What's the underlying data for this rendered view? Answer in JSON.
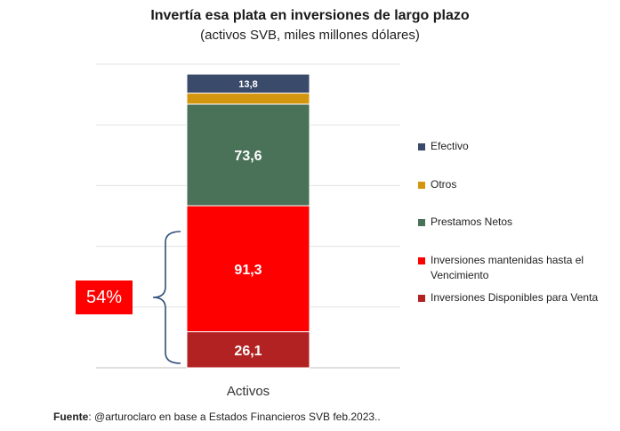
{
  "chart_data": {
    "type": "bar",
    "stacked": true,
    "title": "Invertía esa plata en inversiones de largo plazo",
    "subtitle": "(activos SVB, miles millones dólares)",
    "categories": [
      "Activos"
    ],
    "ylim": [
      0,
      220
    ],
    "grid": true,
    "legend_position": "right",
    "series": [
      {
        "name": "Inversiones Disponibles para Venta",
        "values": [
          26.1
        ],
        "label": "26,1",
        "color": "#b22222"
      },
      {
        "name": "Inversiones mantenidas hasta el Vencimiento",
        "values": [
          91.3
        ],
        "label": "91,3",
        "color": "#ff0000"
      },
      {
        "name": "Prestamos Netos",
        "values": [
          73.6
        ],
        "label": "73,6",
        "color": "#4a7258"
      },
      {
        "name": "Otros",
        "values": [
          8.0
        ],
        "label": "",
        "color": "#d4960e"
      },
      {
        "name": "Efectivo",
        "values": [
          13.8
        ],
        "label": "13,8",
        "color": "#3a4a6b"
      }
    ],
    "legend": [
      {
        "label": "Efectivo",
        "color": "#3a4a6b"
      },
      {
        "label": "Otros",
        "color": "#d4960e"
      },
      {
        "label": "Prestamos Netos",
        "color": "#4a7258"
      },
      {
        "label": "Inversiones mantenidas hasta el Vencimiento",
        "color": "#ff0000"
      },
      {
        "label": "Inversiones Disponibles para Venta",
        "color": "#b22222"
      }
    ],
    "annotation": {
      "text": "54%",
      "color": "#ff0000"
    },
    "xlabel": "Activos"
  },
  "source": {
    "label": "Fuente",
    "text": ": @arturoclaro en base a Estados Financieros SVB feb.2023.."
  }
}
